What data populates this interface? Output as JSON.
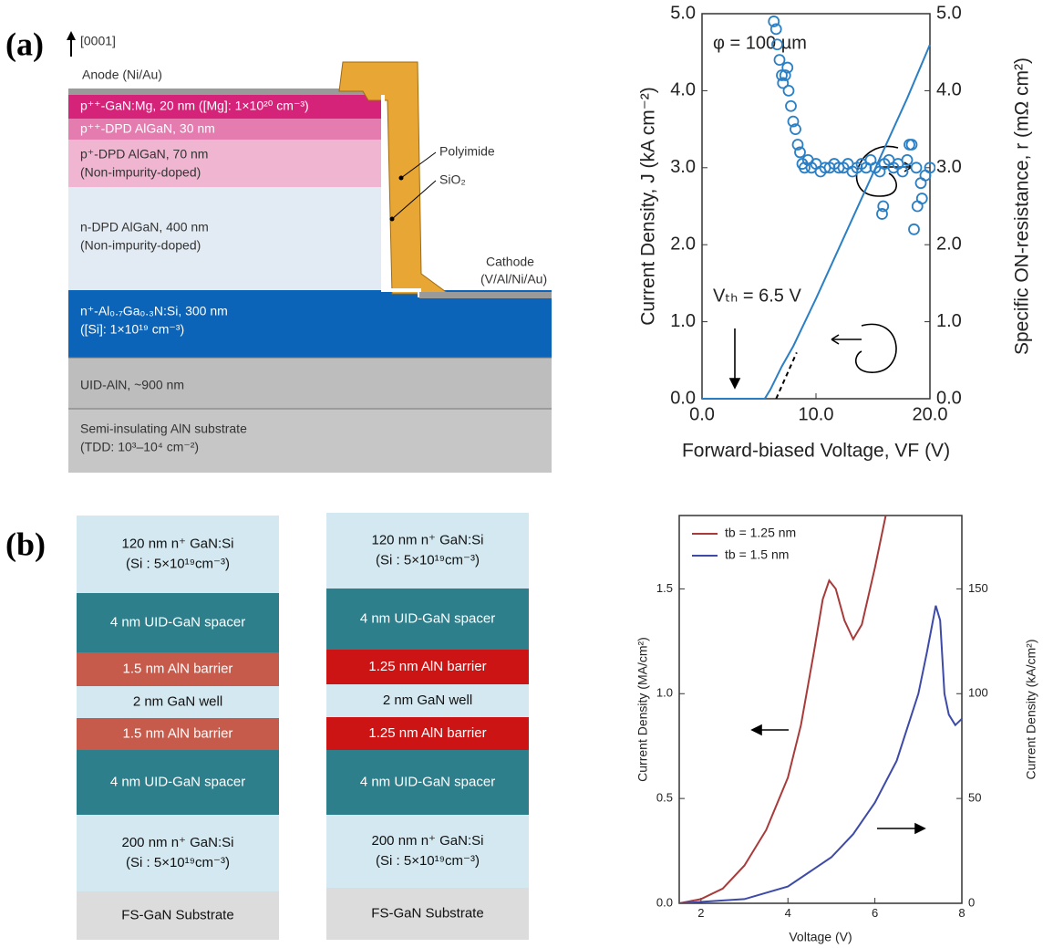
{
  "panel_labels": [
    "(a)",
    "(b)"
  ],
  "diagram_a": {
    "direction": "[0001]",
    "anode": "Anode (Ni/Au)",
    "layers": [
      {
        "lines": [
          "p⁺⁺-GaN:Mg, 20 nm ([Mg]: 1×10²⁰ cm⁻³)"
        ]
      },
      {
        "lines": [
          "p⁺⁺-DPD AlGaN, 30 nm"
        ]
      },
      {
        "lines": [
          "p⁺-DPD AlGaN, 70 nm",
          "(Non-impurity-doped)"
        ]
      },
      {
        "lines": [
          "n-DPD AlGaN, 400 nm",
          "(Non-impurity-doped)"
        ]
      },
      {
        "lines": [
          "n⁺-Al₀.₇Ga₀.₃N:Si, 300 nm",
          "([Si]: 1×10¹⁹ cm⁻³)"
        ]
      },
      {
        "lines": [
          "UID-AlN, ~900 nm"
        ]
      },
      {
        "lines": [
          "Semi-insulating AlN substrate",
          "(TDD: 10³–10⁴ cm⁻²)"
        ]
      }
    ],
    "polyimide": "Polyimide",
    "sio2": "SiO₂",
    "cathode": [
      "Cathode",
      "(V/Al/Ni/Au)"
    ]
  },
  "diagram_b": {
    "stacks": [
      {
        "layers": [
          {
            "lines": [
              "120 nm n⁺ GaN:Si",
              "(Si : 5×10¹⁹cm⁻³)"
            ],
            "color": "#d3e8f0"
          },
          {
            "lines": [
              "4 nm UID-GaN spacer"
            ],
            "color": "#2e7f8c"
          },
          {
            "lines": [
              "1.5 nm AlN barrier"
            ],
            "color": "#c65a4b"
          },
          {
            "lines": [
              "2 nm GaN well"
            ],
            "color": "#d3e8f0"
          },
          {
            "lines": [
              "1.5 nm AlN barrier"
            ],
            "color": "#c65a4b"
          },
          {
            "lines": [
              "4 nm UID-GaN spacer"
            ],
            "color": "#2e7f8c"
          },
          {
            "lines": [
              "200 nm n⁺ GaN:Si",
              "(Si : 5×10¹⁹cm⁻³)"
            ],
            "color": "#d3e8f0"
          },
          {
            "lines": [
              "FS-GaN Substrate"
            ],
            "color": "#dcdcdc"
          }
        ]
      },
      {
        "layers": [
          {
            "lines": [
              "120 nm n⁺ GaN:Si",
              "(Si : 5×10¹⁹cm⁻³)"
            ],
            "color": "#d3e8f0"
          },
          {
            "lines": [
              "4 nm UID-GaN spacer"
            ],
            "color": "#2e7f8c"
          },
          {
            "lines": [
              "1.25 nm AlN barrier"
            ],
            "color": "#cc1414"
          },
          {
            "lines": [
              "2 nm GaN well"
            ],
            "color": "#d3e8f0"
          },
          {
            "lines": [
              "1.25 nm AlN barrier"
            ],
            "color": "#cc1414"
          },
          {
            "lines": [
              "4 nm UID-GaN spacer"
            ],
            "color": "#2e7f8c"
          },
          {
            "lines": [
              "200 nm n⁺ GaN:Si",
              "(Si : 5×10¹⁹cm⁻³)"
            ],
            "color": "#d3e8f0"
          },
          {
            "lines": [
              "FS-GaN Substrate"
            ],
            "color": "#dcdcdc"
          }
        ]
      }
    ]
  },
  "chart_data": [
    {
      "type": "line",
      "annotations": [
        "φ = 100 µm",
        "Vₜₕ = 6.5 V"
      ],
      "x_label": "Forward-biased Voltage, VF (V)",
      "y_label": "Current Density, J (kA cm⁻²)",
      "y2_label": "Specific ON-resistance, r (mΩ cm²)",
      "xlim": [
        0,
        20
      ],
      "xticks": [
        {
          "value": 0,
          "label": "0.0"
        },
        {
          "value": 10,
          "label": "10.0"
        },
        {
          "value": 20,
          "label": "20.0"
        }
      ],
      "ylim": [
        0,
        5
      ],
      "yticks": [
        {
          "value": 0,
          "label": "0.0"
        },
        {
          "value": 1,
          "label": "1.0"
        },
        {
          "value": 2,
          "label": "2.0"
        },
        {
          "value": 3,
          "label": "3.0"
        },
        {
          "value": 4,
          "label": "4.0"
        },
        {
          "value": 5,
          "label": "5.0"
        }
      ],
      "y2lim": [
        0,
        5
      ],
      "y2ticks": [
        {
          "value": 0,
          "label": "0.0"
        },
        {
          "value": 1,
          "label": "1.0"
        },
        {
          "value": 2,
          "label": "2.0"
        },
        {
          "value": 3,
          "label": "3.0"
        },
        {
          "value": 4,
          "label": "4.0"
        },
        {
          "value": 5,
          "label": "5.0"
        }
      ],
      "series": [
        {
          "color": "#2b7fc4",
          "x": [
            0,
            5.5,
            6,
            7,
            8,
            10,
            12,
            14,
            16,
            18,
            20
          ],
          "values": [
            0,
            0,
            0.12,
            0.42,
            0.68,
            1.3,
            1.95,
            2.6,
            3.25,
            3.9,
            4.6
          ]
        },
        {
          "color": "#000000",
          "dash": true,
          "x": [
            6.5,
            8.3
          ],
          "values": [
            0,
            0.6
          ]
        },
        {
          "color": "#2b7fc4",
          "type": "scatter",
          "axis": "y2",
          "x": [
            6.3,
            6.5,
            6.6,
            6.8,
            7.0,
            7.1,
            7.3,
            7.5,
            7.6,
            7.8,
            8.0,
            8.2,
            8.4,
            8.6,
            8.8,
            9.0,
            9.3,
            9.6,
            10.0,
            10.4,
            10.8,
            11.2,
            11.6,
            12.0,
            12.4,
            12.8,
            13.2,
            13.6,
            14.0,
            14.4,
            14.8,
            15.2,
            15.6,
            15.8,
            15.9,
            16.0,
            16.4,
            16.8,
            17.2,
            17.6,
            18.0,
            18.2,
            18.4,
            18.6,
            18.8,
            18.9,
            19.2,
            19.3,
            19.6,
            20.0
          ],
          "values": [
            4.9,
            4.8,
            4.6,
            4.4,
            4.2,
            4.1,
            4.2,
            4.3,
            4.0,
            3.8,
            3.6,
            3.5,
            3.3,
            3.2,
            3.05,
            3.0,
            3.1,
            3.0,
            3.05,
            2.95,
            3.0,
            3.0,
            3.05,
            3.0,
            3.0,
            3.05,
            2.95,
            3.0,
            3.05,
            3.0,
            3.1,
            3.0,
            2.95,
            2.4,
            2.5,
            3.05,
            3.1,
            3.0,
            3.05,
            2.95,
            3.1,
            3.3,
            3.3,
            2.2,
            3.0,
            2.5,
            2.8,
            2.6,
            2.9,
            3.0
          ]
        }
      ]
    },
    {
      "type": "line",
      "x_label": "Voltage (V)",
      "y_label": "Current Density (MA/cm²)",
      "y2_label": "Current Density (kA/cm²)",
      "xlim": [
        1.5,
        8
      ],
      "xticks": [
        2,
        4,
        6,
        8
      ],
      "ylim": [
        0,
        1.85
      ],
      "yticks": [
        {
          "value": 0,
          "label": "0.0"
        },
        {
          "value": 0.5,
          "label": "0.5"
        },
        {
          "value": 1,
          "label": "1.0"
        },
        {
          "value": 1.5,
          "label": "1.5"
        }
      ],
      "y2lim": [
        0,
        185
      ],
      "y2ticks": [
        0,
        50,
        100,
        150
      ],
      "legend": "upper left",
      "series": [
        {
          "name": "tb = 1.25 nm",
          "color": "#a83a3a",
          "x": [
            1.5,
            2,
            2.5,
            3,
            3.5,
            4,
            4.3,
            4.6,
            4.8,
            4.95,
            5.1,
            5.3,
            5.5,
            5.7,
            6.0,
            6.25
          ],
          "values": [
            0,
            0.02,
            0.07,
            0.18,
            0.35,
            0.6,
            0.85,
            1.2,
            1.45,
            1.54,
            1.5,
            1.35,
            1.26,
            1.33,
            1.6,
            1.85
          ]
        },
        {
          "name": "tb = 1.5 nm",
          "color": "#3d4aa8",
          "axis": "y2",
          "x": [
            1.5,
            3,
            4,
            5,
            5.5,
            6,
            6.5,
            7,
            7.2,
            7.4,
            7.5,
            7.6,
            7.7,
            7.85,
            8
          ],
          "values": [
            0,
            2,
            8,
            22,
            33,
            48,
            68,
            100,
            120,
            142,
            135,
            100,
            90,
            85,
            88
          ]
        }
      ]
    }
  ]
}
